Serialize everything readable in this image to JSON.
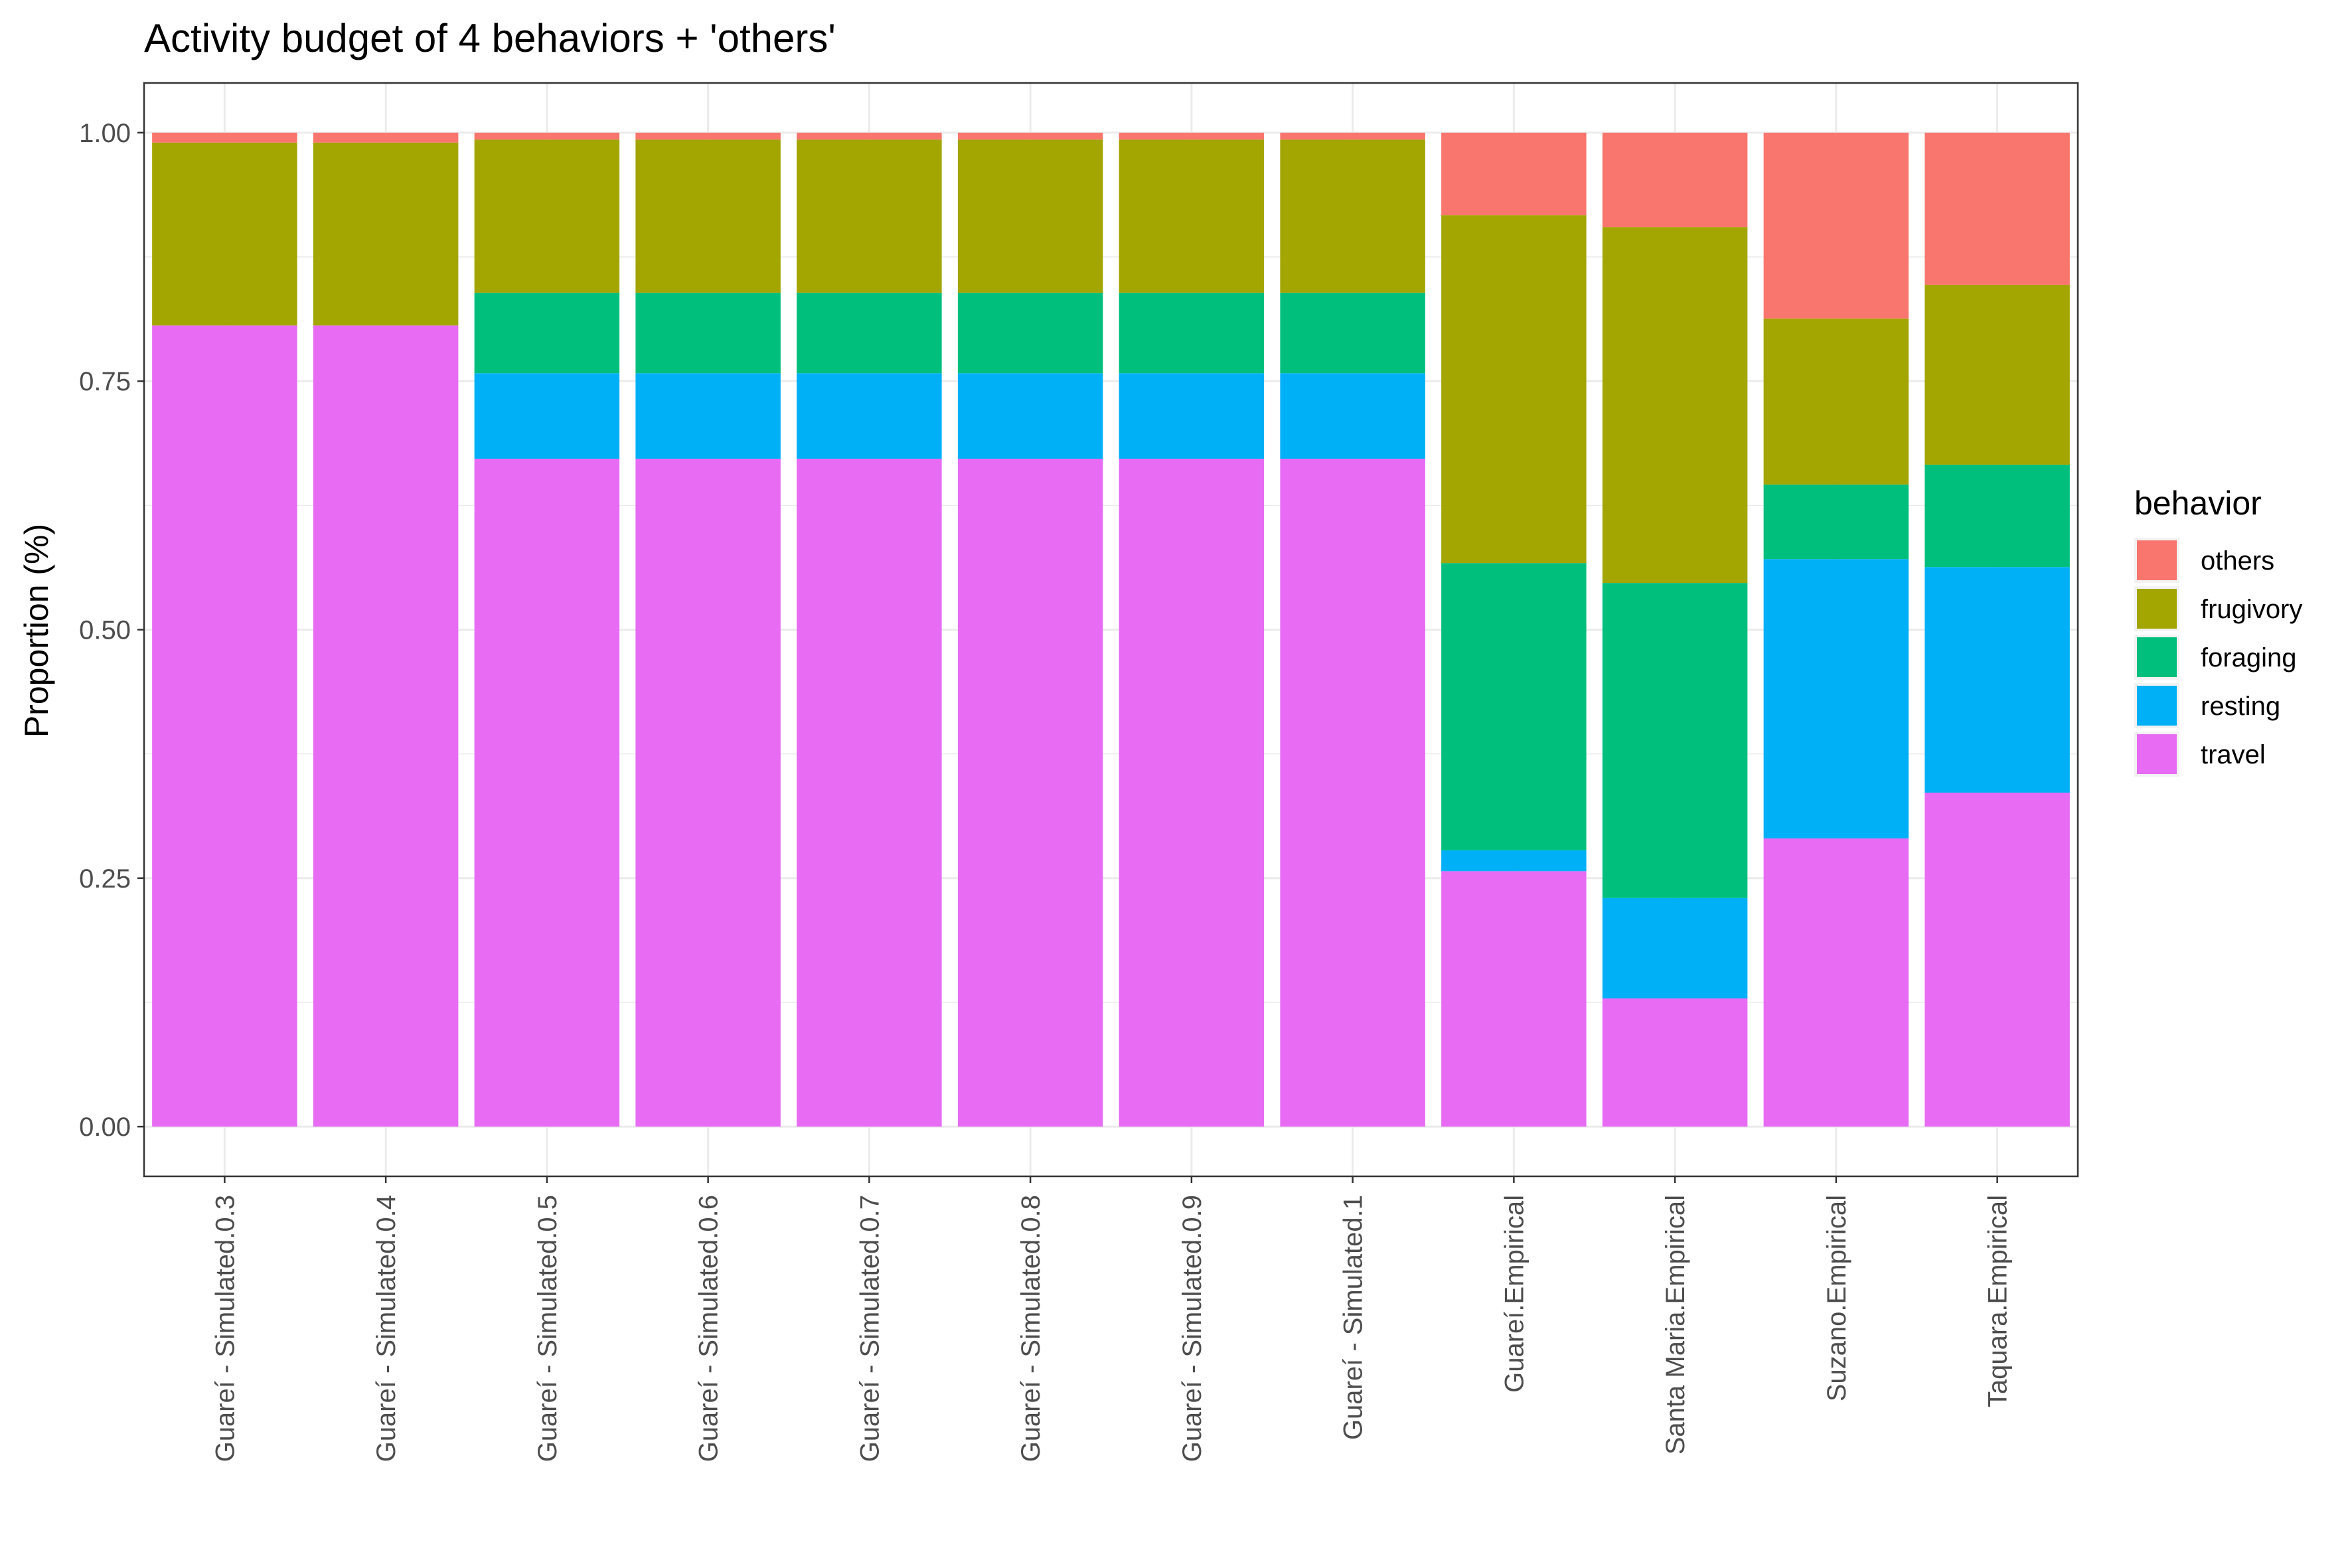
{
  "chart_data": {
    "type": "bar",
    "stacked": true,
    "title": "Activity budget of 4 behaviors + 'others'",
    "xlabel": "",
    "ylabel": "Proportion (%)",
    "ylim": [
      -0.05,
      1.05
    ],
    "yticks": [
      "0.00",
      "0.25",
      "0.50",
      "0.75",
      "1.00"
    ],
    "grid": true,
    "legend_position": "right",
    "legend_title": "behavior",
    "categories": [
      "Guareí - Simulated.0.3",
      "Guareí - Simulated.0.4",
      "Guareí - Simulated.0.5",
      "Guareí - Simulated.0.6",
      "Guareí - Simulated.0.7",
      "Guareí - Simulated.0.8",
      "Guareí - Simulated.0.9",
      "Guareí - Simulated.1",
      "Guareí.Empirical",
      "Santa Maria.Empirical",
      "Suzano.Empirical",
      "Taquara.Empirical"
    ],
    "series": [
      {
        "name": "travel",
        "color": "#E76BF3",
        "values": [
          0.806,
          0.806,
          0.672,
          0.672,
          0.672,
          0.672,
          0.672,
          0.672,
          0.257,
          0.129,
          0.29,
          0.336
        ]
      },
      {
        "name": "resting",
        "color": "#00B0F6",
        "values": [
          0.0,
          0.0,
          0.086,
          0.086,
          0.086,
          0.086,
          0.086,
          0.086,
          0.021,
          0.101,
          0.281,
          0.227
        ]
      },
      {
        "name": "foraging",
        "color": "#00BF7D",
        "values": [
          0.0,
          0.0,
          0.081,
          0.081,
          0.081,
          0.081,
          0.081,
          0.081,
          0.289,
          0.317,
          0.075,
          0.103
        ]
      },
      {
        "name": "frugivory",
        "color": "#A3A500",
        "values": [
          0.184,
          0.184,
          0.154,
          0.154,
          0.154,
          0.154,
          0.154,
          0.154,
          0.35,
          0.358,
          0.167,
          0.181
        ]
      },
      {
        "name": "others",
        "color": "#F8766D",
        "values": [
          0.01,
          0.01,
          0.007,
          0.007,
          0.007,
          0.007,
          0.007,
          0.007,
          0.083,
          0.095,
          0.187,
          0.153
        ]
      }
    ],
    "legend_order": [
      "others",
      "frugivory",
      "foraging",
      "resting",
      "travel"
    ]
  }
}
